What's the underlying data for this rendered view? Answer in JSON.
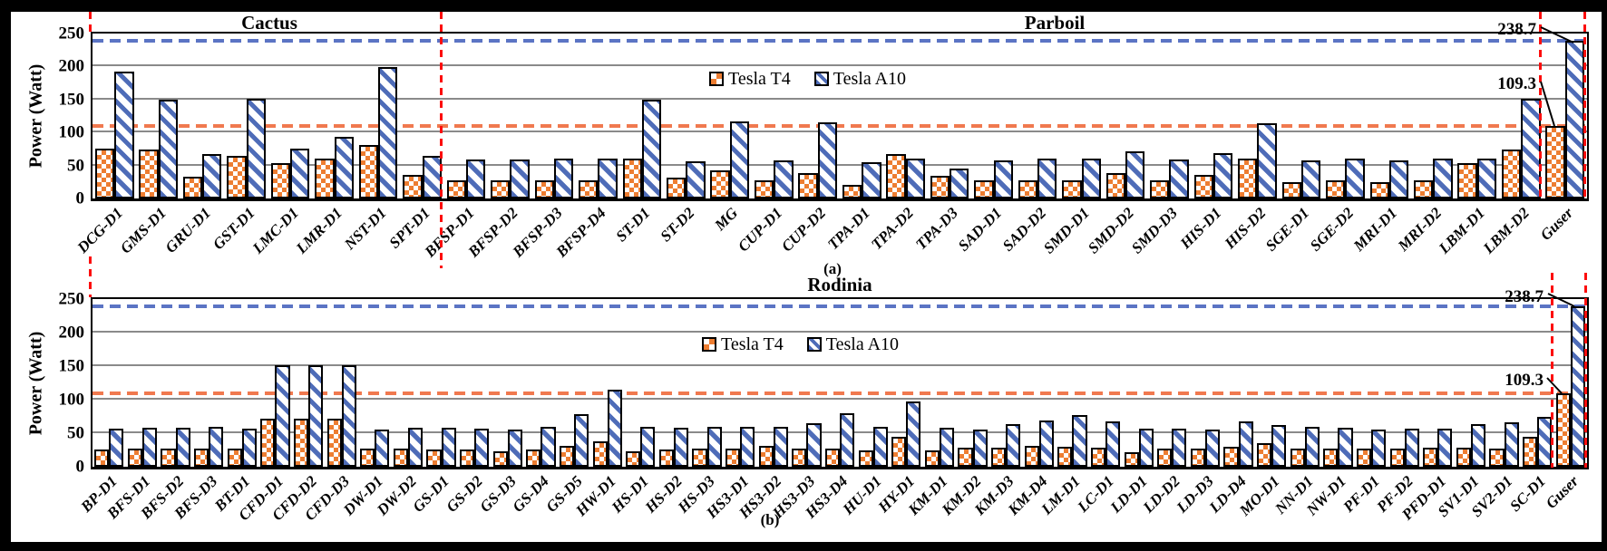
{
  "colors": {
    "tesla_t4": "#ed7d31",
    "tesla_a10": "#4e6cb8",
    "t4_reference_line": "#f0794f",
    "a10_reference_line": "#5b74c4",
    "region_divider": "#fc0d0d",
    "gridline": "#8a8a8a"
  },
  "chart_data": [
    {
      "type": "bar",
      "panel": "a",
      "sublabel": "(a)",
      "sections": [
        {
          "label": "Cactus"
        },
        {
          "label": "Parboil"
        }
      ],
      "ylabel": "Power (Watt)",
      "ylim": [
        0,
        250
      ],
      "yticks": [
        0,
        50,
        100,
        150,
        200,
        250
      ],
      "grid": "horizontal, every 50",
      "legend_position": "upper center",
      "categories": [
        "DCG-D1",
        "GMS-D1",
        "GRU-D1",
        "GST-D1",
        "LMC-D1",
        "LMR-D1",
        "NST-D1",
        "SPT-D1",
        "BFSP-D1",
        "BFSP-D2",
        "BFSP-D3",
        "BFSP-D4",
        "ST-D1",
        "ST-D2",
        "MG",
        "CUP-D1",
        "CUP-D2",
        "TPA-D1",
        "TPA-D2",
        "TPA-D3",
        "SAD-D1",
        "SAD-D2",
        "SMD-D1",
        "SMD-D2",
        "SMD-D3",
        "HIS-D1",
        "HIS-D2",
        "SGE-D1",
        "SGE-D2",
        "MRI-D1",
        "MRI-D2",
        "LBM-D1",
        "LBM-D2",
        "Guser"
      ],
      "series": [
        {
          "name": "Tesla T4",
          "values": [
            75,
            74,
            33,
            64,
            53,
            60,
            81,
            36,
            27,
            27,
            28,
            27,
            60,
            31,
            42,
            28,
            39,
            21,
            67,
            35,
            27,
            27,
            27,
            39,
            28,
            36,
            61,
            25,
            28,
            25,
            27,
            53,
            74,
            109.3
          ]
        },
        {
          "name": "Tesla A10",
          "values": [
            192,
            150,
            67,
            151,
            76,
            93,
            199,
            65,
            59,
            59,
            61,
            60,
            150,
            57,
            117,
            58,
            116,
            55,
            61,
            46,
            58,
            60,
            60,
            71,
            59,
            69,
            114,
            58,
            60,
            58,
            60,
            60,
            151,
            238.7
          ]
        }
      ],
      "reference_lines": [
        {
          "series": "Tesla A10",
          "value": 238.7,
          "style": "dashed blue"
        },
        {
          "series": "Tesla T4",
          "value": 109.3,
          "style": "dashed orange"
        }
      ],
      "annotations": [
        {
          "text": "238.7",
          "points_to": "Guser Tesla A10 bar top"
        },
        {
          "text": "109.3",
          "points_to": "Guser Tesla T4 bar top"
        }
      ]
    },
    {
      "type": "bar",
      "panel": "b",
      "sublabel": "(b)",
      "sections": [
        {
          "label": "Rodinia"
        }
      ],
      "ylabel": "Power (Watt)",
      "ylim": [
        0,
        250
      ],
      "yticks": [
        0,
        50,
        100,
        150,
        200,
        250
      ],
      "grid": "horizontal, every 50",
      "legend_position": "upper center",
      "categories": [
        "BP-D1",
        "BFS-D1",
        "BFS-D2",
        "BFS-D3",
        "BT-D1",
        "CFD-D1",
        "CFD-D2",
        "CFD-D3",
        "DW-D1",
        "DW-D2",
        "GS-D1",
        "GS-D2",
        "GS-D3",
        "GS-D4",
        "GS-D5",
        "HW-D1",
        "HS-D1",
        "HS-D2",
        "HS-D3",
        "HS3-D1",
        "HS3-D2",
        "HS3-D3",
        "HS3-D4",
        "HU-D1",
        "HY-D1",
        "KM-D1",
        "KM-D2",
        "KM-D3",
        "KM-D4",
        "LM-D1",
        "LC-D1",
        "LD-D1",
        "LD-D2",
        "LD-D3",
        "LD-D4",
        "MO-D1",
        "NN-D1",
        "NW-D1",
        "PF-D1",
        "PF-D2",
        "PFD-D1",
        "SV1-D1",
        "SV2-D1",
        "SC-D1",
        "Guser"
      ],
      "series": [
        {
          "name": "Tesla T4",
          "values": [
            26,
            27,
            27,
            27,
            27,
            71,
            72,
            72,
            27,
            27,
            26,
            26,
            23,
            26,
            31,
            38,
            23,
            26,
            27,
            27,
            31,
            27,
            27,
            24,
            44,
            25,
            28,
            29,
            31,
            30,
            28,
            22,
            27,
            27,
            30,
            35,
            27,
            27,
            27,
            27,
            28,
            29,
            27,
            44,
            109.3
          ]
        },
        {
          "name": "Tesla A10",
          "values": [
            57,
            58,
            58,
            59,
            57,
            152,
            152,
            151,
            56,
            58,
            58,
            57,
            56,
            60,
            78,
            115,
            60,
            58,
            60,
            59,
            60,
            65,
            80,
            60,
            97,
            58,
            55,
            63,
            69,
            77,
            68,
            57,
            57,
            55,
            68,
            62,
            59,
            58,
            56,
            57,
            57,
            64,
            66,
            74,
            238.7
          ]
        }
      ],
      "reference_lines": [
        {
          "series": "Tesla A10",
          "value": 238.7,
          "style": "dashed blue"
        },
        {
          "series": "Tesla T4",
          "value": 109.3,
          "style": "dashed orange"
        }
      ],
      "annotations": [
        {
          "text": "238.7",
          "points_to": "Guser Tesla A10 bar top"
        },
        {
          "text": "109.3",
          "points_to": "Guser Tesla T4 bar top"
        }
      ]
    }
  ]
}
